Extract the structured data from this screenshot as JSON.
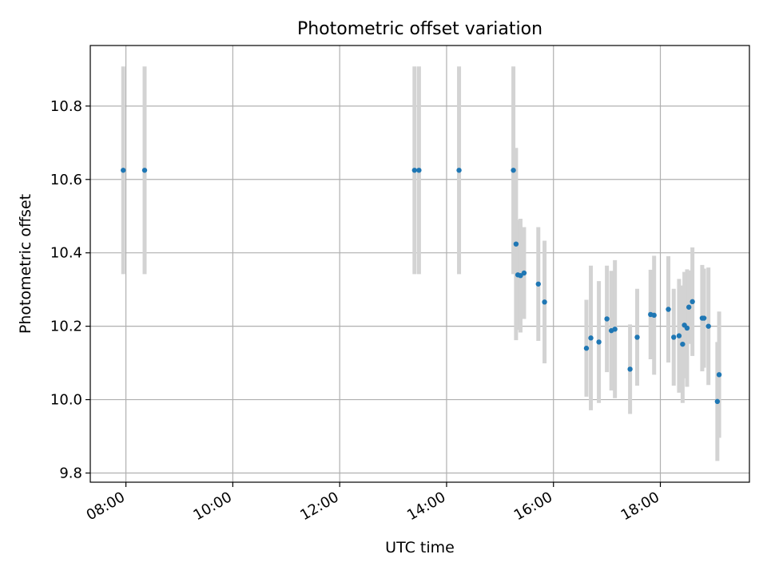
{
  "chart_data": {
    "type": "scatter",
    "title": "Photometric offset variation",
    "xlabel": "UTC time",
    "ylabel": "Photometric offset",
    "x_is_time": true,
    "xlim": [
      "07:20",
      "19:40"
    ],
    "ylim": [
      9.775,
      10.965
    ],
    "grid": true,
    "xticks": [
      "08:00",
      "10:00",
      "12:00",
      "14:00",
      "16:00",
      "18:00"
    ],
    "yticks": [
      9.8,
      10.0,
      10.2,
      10.4,
      10.6,
      10.8
    ],
    "colors": {
      "marker": "#1f77b4",
      "errorbar": "#d3d3d3",
      "grid": "#b0b0b0"
    },
    "points": [
      {
        "x": "07:57",
        "y": 10.625,
        "err": 0.283
      },
      {
        "x": "08:21",
        "y": 10.625,
        "err": 0.283
      },
      {
        "x": "13:24",
        "y": 10.625,
        "err": 0.283
      },
      {
        "x": "13:29",
        "y": 10.625,
        "err": 0.283
      },
      {
        "x": "14:14",
        "y": 10.625,
        "err": 0.283
      },
      {
        "x": "15:15",
        "y": 10.625,
        "err": 0.283
      },
      {
        "x": "15:18",
        "y": 10.424,
        "err": 0.262
      },
      {
        "x": "15:20",
        "y": 10.34,
        "err": 0.15
      },
      {
        "x": "15:23",
        "y": 10.338,
        "err": 0.155
      },
      {
        "x": "15:27",
        "y": 10.345,
        "err": 0.125
      },
      {
        "x": "15:43",
        "y": 10.315,
        "err": 0.155
      },
      {
        "x": "15:50",
        "y": 10.266,
        "err": 0.167
      },
      {
        "x": "16:37",
        "y": 10.14,
        "err": 0.132
      },
      {
        "x": "16:42",
        "y": 10.168,
        "err": 0.197
      },
      {
        "x": "16:51",
        "y": 10.157,
        "err": 0.166
      },
      {
        "x": "17:00",
        "y": 10.22,
        "err": 0.145
      },
      {
        "x": "17:05",
        "y": 10.188,
        "err": 0.163
      },
      {
        "x": "17:09",
        "y": 10.192,
        "err": 0.188
      },
      {
        "x": "17:26",
        "y": 10.083,
        "err": 0.122
      },
      {
        "x": "17:34",
        "y": 10.17,
        "err": 0.132
      },
      {
        "x": "17:49",
        "y": 10.232,
        "err": 0.122
      },
      {
        "x": "17:53",
        "y": 10.23,
        "err": 0.162
      },
      {
        "x": "18:09",
        "y": 10.246,
        "err": 0.145
      },
      {
        "x": "18:15",
        "y": 10.17,
        "err": 0.132
      },
      {
        "x": "18:21",
        "y": 10.174,
        "err": 0.155
      },
      {
        "x": "18:25",
        "y": 10.151,
        "err": 0.16
      },
      {
        "x": "18:27",
        "y": 10.203,
        "err": 0.145
      },
      {
        "x": "18:30",
        "y": 10.195,
        "err": 0.16
      },
      {
        "x": "18:32",
        "y": 10.252,
        "err": 0.1
      },
      {
        "x": "18:36",
        "y": 10.267,
        "err": 0.148
      },
      {
        "x": "18:47",
        "y": 10.222,
        "err": 0.145
      },
      {
        "x": "18:49",
        "y": 10.222,
        "err": 0.135
      },
      {
        "x": "18:54",
        "y": 10.2,
        "err": 0.16
      },
      {
        "x": "19:04",
        "y": 9.995,
        "err": 0.162
      },
      {
        "x": "19:06",
        "y": 10.068,
        "err": 0.172
      }
    ]
  }
}
